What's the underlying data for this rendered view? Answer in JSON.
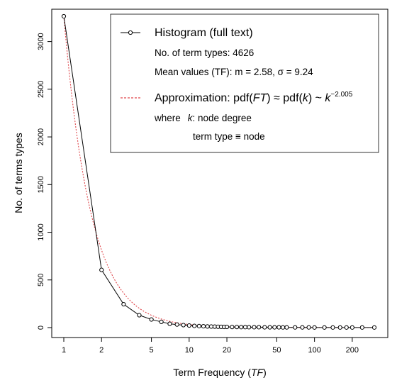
{
  "chart_data": {
    "type": "line",
    "xscale": "log",
    "xlabel": "Term Frequency (TF)",
    "xlabel_prefix": "Term Frequency (",
    "xlabel_var": "TF",
    "xlabel_suffix": ")",
    "ylabel": "No. of terms types",
    "xlim": [
      1,
      300
    ],
    "ylim": [
      0,
      3250
    ],
    "x_ticks": [
      1,
      2,
      5,
      10,
      20,
      50,
      100,
      200
    ],
    "y_ticks": [
      0,
      500,
      1000,
      1500,
      2000,
      2500,
      3000
    ],
    "grid": false,
    "legend_position": "top-right",
    "series": [
      {
        "name": "Histogram (full text)",
        "style": "line-with-open-circles",
        "color": "#000000",
        "x": [
          1,
          2,
          3,
          4,
          5,
          6,
          7,
          8,
          9,
          10,
          11,
          12,
          13,
          14,
          15,
          16,
          17,
          18,
          19,
          20,
          22,
          24,
          26,
          28,
          30,
          33,
          36,
          40,
          44,
          48,
          52,
          56,
          60,
          70,
          80,
          90,
          100,
          120,
          140,
          160,
          180,
          200,
          240,
          300
        ],
        "y": [
          3265,
          605,
          245,
          130,
          85,
          60,
          40,
          32,
          26,
          22,
          18,
          16,
          14,
          12,
          11,
          10,
          9,
          8,
          7,
          7,
          6,
          6,
          5,
          5,
          4,
          4,
          4,
          3,
          3,
          3,
          3,
          2,
          2,
          2,
          2,
          2,
          1,
          1,
          1,
          1,
          1,
          1,
          1,
          1
        ]
      },
      {
        "name": "Approximation: pdf(FT) ≈ pdf(k) ~ k^−2.005",
        "style": "dotted",
        "color": "#e0474c",
        "function": "power-law",
        "coefficient": 3265,
        "exponent": -2.005
      }
    ],
    "legend": {
      "entry1": "Histogram (full text)",
      "count_line": "No. of term types: 4626",
      "mean_line": "Mean values (TF): m = 2.58, σ = 9.24",
      "approx_label": "Approximation: pdf(",
      "approx_ft": "FT",
      "approx_mid": ") ≈ pdf(",
      "approx_k": "k",
      "approx_end": ") ~ ",
      "approx_k2": "k",
      "approx_exp": "−2.005",
      "where_text": "where",
      "where_k": "k",
      "where_rest": ":  node degree",
      "term_line": "term type ≡ node"
    }
  }
}
